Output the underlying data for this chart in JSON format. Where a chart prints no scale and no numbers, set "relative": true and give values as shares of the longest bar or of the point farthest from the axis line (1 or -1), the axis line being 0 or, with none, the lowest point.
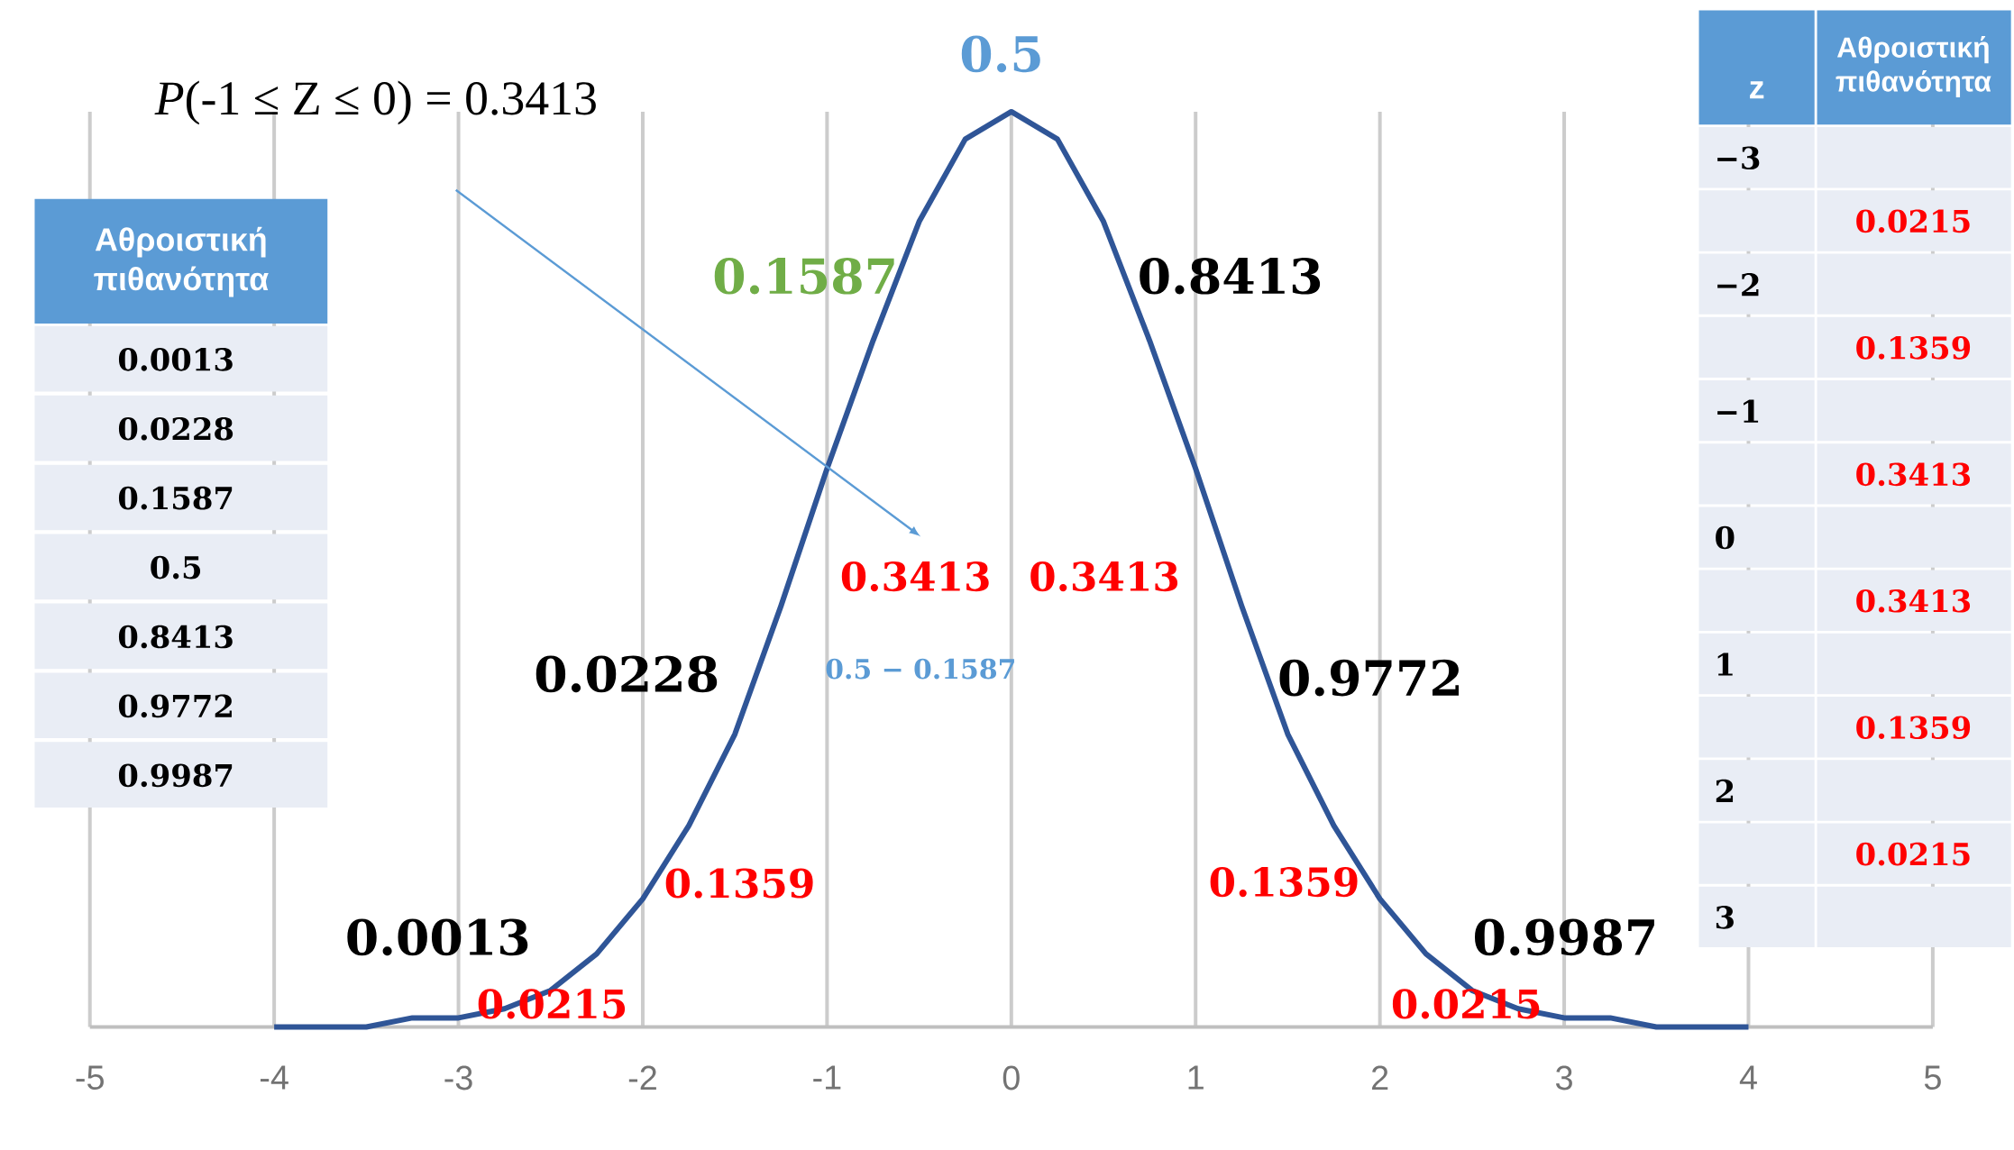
{
  "chart_data": {
    "type": "line",
    "relative": true,
    "grid": "x",
    "xlim": [
      -5,
      5
    ],
    "xticks": [
      -5,
      -4,
      -3,
      -2,
      -1,
      0,
      1,
      2,
      3,
      4,
      5
    ],
    "series": [
      {
        "color": "#2f5597",
        "x": [
          -4,
          -3.75,
          -3.5,
          -3.25,
          -3,
          -2.75,
          -2.5,
          -2.25,
          -2,
          -1.75,
          -1.5,
          -1.25,
          -1,
          -0.75,
          -0.5,
          -0.25,
          0,
          0.25,
          0.5,
          0.75,
          1,
          1.25,
          1.5,
          1.75,
          2,
          2.25,
          2.5,
          2.75,
          3,
          3.25,
          3.5,
          3.75,
          4
        ],
        "values": [
          0,
          0,
          0,
          0.01,
          0.01,
          0.02,
          0.04,
          0.08,
          0.14,
          0.22,
          0.32,
          0.46,
          0.61,
          0.75,
          0.88,
          0.97,
          1,
          0.97,
          0.88,
          0.75,
          0.61,
          0.46,
          0.32,
          0.22,
          0.14,
          0.08,
          0.04,
          0.02,
          0.01,
          0.01,
          0,
          0,
          0
        ]
      }
    ],
    "annotations": [
      "0.5",
      "*P*(-1 ≤ Z ≤ 0) = 0.3413",
      "0.1587",
      "0.8413",
      "0.3413",
      "0.3413",
      "0.0228",
      "0.5 − 0.1587",
      "0.9772",
      "0.1359",
      "0.1359",
      "0.0013",
      "0.9987",
      "0.0215",
      "0.0215",
      "Αθροιστική πιθανότητα",
      "0.0013",
      "0.0228",
      "0.1587",
      "0.5",
      "0.8413",
      "0.9772",
      "0.9987",
      "z",
      "Αθροιστική πιθανότητα",
      "−3",
      "0.0215",
      "−2",
      "0.1359",
      "−1",
      "0.3413",
      "0",
      "0.3413",
      "1",
      "0.1359",
      "2",
      "0.0215",
      "3"
    ]
  }
}
